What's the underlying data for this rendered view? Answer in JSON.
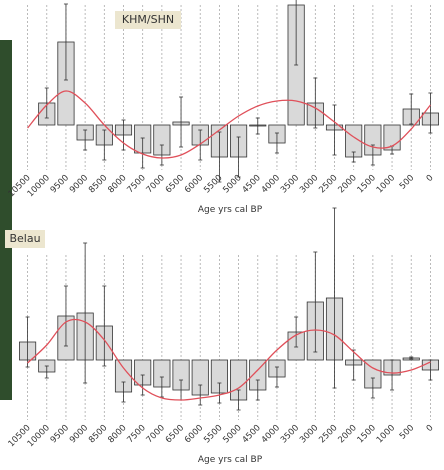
{
  "chart_data": [
    {
      "type": "bar",
      "title": "KHM/SHN",
      "x_label": "Age yrs cal BP",
      "x": [
        10500,
        10000,
        9500,
        9000,
        8500,
        8000,
        7500,
        7000,
        6500,
        6000,
        5500,
        5000,
        4500,
        4000,
        3500,
        3000,
        2500,
        2000,
        1500,
        1000,
        500,
        0
      ],
      "values": [
        null,
        2.2,
        8.3,
        -1.5,
        -2.0,
        -1.0,
        -2.8,
        -3.0,
        0.3,
        -2.0,
        -3.2,
        -3.2,
        -0.1,
        -1.8,
        12.0,
        2.2,
        -0.5,
        -3.2,
        -3.0,
        -2.5,
        1.6,
        1.2
      ],
      "errors": [
        null,
        1.5,
        3.8,
        1.0,
        1.5,
        1.5,
        1.5,
        1.0,
        2.5,
        1.5,
        2.5,
        2.0,
        0.8,
        1.0,
        6.0,
        2.5,
        2.5,
        0.5,
        1.0,
        0.4,
        1.5,
        2.0
      ],
      "curve": [
        -0.3,
        2.0,
        3.4,
        2.2,
        0.0,
        -1.8,
        -2.9,
        -3.3,
        -3.0,
        -1.9,
        -0.5,
        0.9,
        1.9,
        2.4,
        2.4,
        1.7,
        0.3,
        -1.2,
        -2.2,
        -2.1,
        -0.4,
        2.0
      ],
      "bar_color": "#d9d9d9",
      "curve_color": "#e0505a",
      "xlim": [
        10750,
        -250
      ],
      "ylim": [
        -4.5,
        12
      ],
      "xticks": [
        10500,
        10000,
        9500,
        9000,
        8500,
        8000,
        7500,
        7000,
        6500,
        6000,
        5500,
        5000,
        4500,
        4000,
        3500,
        3000,
        2500,
        2000,
        1500,
        1000,
        500,
        0
      ],
      "grid": true
    },
    {
      "type": "bar",
      "title": "Belau",
      "x_label": "Age yrs cal BP",
      "x": [
        10500,
        10000,
        9500,
        9000,
        8500,
        8000,
        7500,
        7000,
        6500,
        6000,
        5500,
        5000,
        4500,
        4000,
        3500,
        3000,
        2500,
        2000,
        1500,
        1000,
        500,
        0
      ],
      "values": [
        1.8,
        -1.2,
        4.4,
        4.7,
        3.4,
        -3.2,
        -2.5,
        -2.7,
        -3.0,
        -3.5,
        -3.3,
        -4.0,
        -3.0,
        -1.7,
        2.8,
        5.8,
        6.2,
        -0.5,
        -2.8,
        -1.5,
        0.2,
        -1.0
      ],
      "errors": [
        2.5,
        0.6,
        3.0,
        7.0,
        4.0,
        1.0,
        1.0,
        1.0,
        1.0,
        1.0,
        1.0,
        1.0,
        1.0,
        1.0,
        1.5,
        5.0,
        9.0,
        1.5,
        1.0,
        1.5,
        0.1,
        1.0
      ],
      "curve": [
        -0.3,
        1.5,
        3.8,
        3.8,
        2.0,
        -0.8,
        -2.8,
        -3.8,
        -4.0,
        -3.8,
        -3.5,
        -2.8,
        -1.0,
        1.0,
        2.5,
        3.0,
        2.5,
        0.8,
        -0.8,
        -1.3,
        -1.0,
        -0.2
      ],
      "bar_color": "#d9d9d9",
      "curve_color": "#e0505a",
      "xlim": [
        10750,
        -250
      ],
      "ylim": [
        -6,
        10.5
      ],
      "xticks": [
        10500,
        10000,
        9500,
        9000,
        8500,
        8000,
        7500,
        7000,
        6500,
        6000,
        5500,
        5000,
        4500,
        4000,
        3500,
        3000,
        2500,
        2000,
        1500,
        1000,
        500,
        0
      ],
      "grid": true
    }
  ]
}
